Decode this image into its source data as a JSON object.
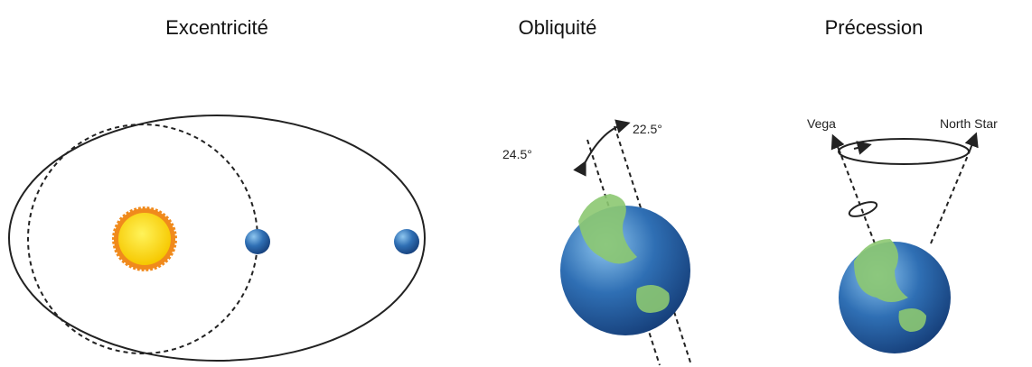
{
  "panels": [
    {
      "title": "Excentricité"
    },
    {
      "title": "Obliquité",
      "labels": [
        "24.5°",
        "22.5°"
      ]
    },
    {
      "title": "Précession",
      "labels": [
        "Vega",
        "North Star"
      ]
    }
  ]
}
